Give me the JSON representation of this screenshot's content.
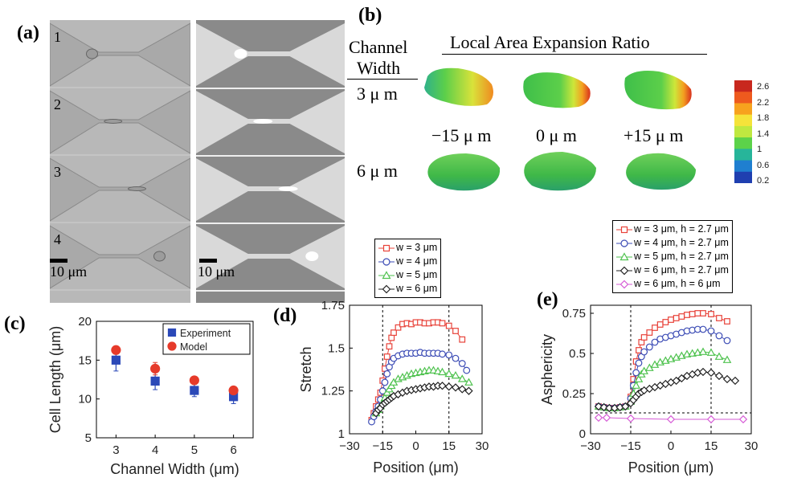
{
  "colors": {
    "red": "#e8433a",
    "blue": "#3b4bb5",
    "green": "#4fc24f",
    "black": "#222222",
    "magenta": "#d65bd6",
    "exp": "#2b49b8",
    "model": "#e63a2a"
  },
  "panel_a": {
    "label": "(a)",
    "rows": [
      "1",
      "2",
      "3",
      "4"
    ],
    "scale_left": "10 μm",
    "scale_right": "10 μm"
  },
  "panel_b": {
    "label": "(b)",
    "title": "Local Area Expansion Ratio",
    "row_header_1": "Channel",
    "row_header_2": "Width",
    "row_labels": [
      "3  μ m",
      "6  μ m"
    ],
    "positions": [
      "−15 μ m",
      "0  μ m",
      "+15  μ m"
    ],
    "colorbar_ticks": [
      "2.6",
      "2.2",
      "1.8",
      "1.4",
      "1",
      "0.6",
      "0.2"
    ],
    "colorbar_colors": [
      "#c8281e",
      "#ee5a1e",
      "#f7a21e",
      "#f5e33a",
      "#bfe840",
      "#5cd24a",
      "#27b59a",
      "#1f7fd0",
      "#1f3fb0"
    ]
  },
  "chart_data": [
    {
      "id": "c",
      "type": "scatter",
      "label": "(c)",
      "xlabel": "Channel Width (μm)",
      "ylabel": "Cell Length (μm)",
      "xlim": [
        2.5,
        6.5
      ],
      "ylim": [
        5,
        20
      ],
      "xticks": [
        3,
        4,
        5,
        6
      ],
      "yticks": [
        5,
        10,
        15,
        20
      ],
      "series": [
        {
          "name": "Experiment",
          "marker": "square",
          "color": "#2b49b8",
          "x": [
            3,
            4,
            5,
            6
          ],
          "y": [
            15,
            12.3,
            11.1,
            10.3
          ],
          "err": [
            1.4,
            1.1,
            0.8,
            0.9
          ]
        },
        {
          "name": "Model",
          "marker": "circle",
          "color": "#e63a2a",
          "x": [
            3,
            4,
            5,
            6
          ],
          "y": [
            16.3,
            13.9,
            12.4,
            11.1
          ],
          "err": [
            0.5,
            0.8,
            0,
            0
          ]
        }
      ]
    },
    {
      "id": "d",
      "type": "line",
      "label": "(d)",
      "xlabel": "Position (μm)",
      "ylabel": "Stretch",
      "xlim": [
        -30,
        30
      ],
      "ylim": [
        1,
        1.75
      ],
      "xticks": [
        -30,
        -15,
        0,
        15,
        30
      ],
      "yticks": [
        1,
        1.25,
        1.5,
        1.75
      ],
      "vlines": [
        -15,
        15
      ],
      "series": [
        {
          "name": "w = 3 μm",
          "marker": "square",
          "color": "#e8433a",
          "x": [
            -20,
            -19,
            -18,
            -17,
            -16,
            -15,
            -14,
            -13,
            -12,
            -11,
            -10,
            -8,
            -6,
            -4,
            -2,
            0,
            2,
            4,
            6,
            8,
            10,
            12,
            15,
            18,
            21
          ],
          "y": [
            1.08,
            1.12,
            1.16,
            1.2,
            1.24,
            1.31,
            1.38,
            1.45,
            1.51,
            1.56,
            1.59,
            1.62,
            1.64,
            1.645,
            1.64,
            1.65,
            1.65,
            1.645,
            1.645,
            1.65,
            1.65,
            1.645,
            1.63,
            1.6,
            1.55
          ]
        },
        {
          "name": "w = 4 μm",
          "marker": "circle",
          "color": "#3b4bb5",
          "x": [
            -20,
            -19,
            -18,
            -17,
            -16,
            -15,
            -14,
            -13,
            -12,
            -11,
            -10,
            -8,
            -6,
            -4,
            -2,
            0,
            2,
            4,
            6,
            8,
            10,
            12,
            15,
            18,
            21,
            23
          ],
          "y": [
            1.07,
            1.1,
            1.13,
            1.16,
            1.2,
            1.25,
            1.3,
            1.35,
            1.39,
            1.42,
            1.44,
            1.455,
            1.465,
            1.47,
            1.47,
            1.47,
            1.475,
            1.47,
            1.47,
            1.47,
            1.47,
            1.465,
            1.46,
            1.44,
            1.41,
            1.37
          ]
        },
        {
          "name": "w = 5 μm",
          "marker": "triangle",
          "color": "#4fc24f",
          "x": [
            -18,
            -17,
            -16,
            -15,
            -14,
            -13,
            -12,
            -11,
            -10,
            -8,
            -6,
            -4,
            -2,
            0,
            2,
            4,
            6,
            8,
            10,
            12,
            15,
            18,
            21,
            24
          ],
          "y": [
            1.12,
            1.14,
            1.16,
            1.18,
            1.21,
            1.24,
            1.26,
            1.28,
            1.3,
            1.32,
            1.33,
            1.34,
            1.35,
            1.355,
            1.36,
            1.365,
            1.37,
            1.37,
            1.365,
            1.36,
            1.35,
            1.34,
            1.32,
            1.3
          ]
        },
        {
          "name": "w = 6 μm",
          "marker": "diamond",
          "color": "#222222",
          "x": [
            -18,
            -17,
            -16,
            -15,
            -14,
            -13,
            -12,
            -11,
            -10,
            -8,
            -6,
            -4,
            -2,
            0,
            2,
            4,
            6,
            8,
            10,
            12,
            15,
            18,
            21,
            24
          ],
          "y": [
            1.12,
            1.14,
            1.15,
            1.17,
            1.18,
            1.19,
            1.2,
            1.21,
            1.22,
            1.23,
            1.24,
            1.25,
            1.255,
            1.26,
            1.265,
            1.27,
            1.275,
            1.275,
            1.28,
            1.28,
            1.275,
            1.27,
            1.26,
            1.25
          ]
        }
      ]
    },
    {
      "id": "e",
      "type": "line",
      "label": "(e)",
      "xlabel": "Position (μm)",
      "ylabel": "Asphericity",
      "xlim": [
        -30,
        30
      ],
      "ylim": [
        0,
        0.8
      ],
      "xticks": [
        -30,
        -15,
        0,
        15,
        30
      ],
      "yticks": [
        0,
        0.25,
        0.5,
        0.75
      ],
      "vlines": [
        -15,
        15
      ],
      "hline": 0.13,
      "series": [
        {
          "name": "w = 3 μm, h = 2.7 μm",
          "marker": "square",
          "color": "#e8433a",
          "x": [
            -27,
            -25,
            -23,
            -21,
            -19,
            -17,
            -15,
            -14,
            -13,
            -12,
            -11,
            -10,
            -8,
            -6,
            -4,
            -2,
            0,
            2,
            4,
            6,
            8,
            10,
            12,
            15,
            18,
            21
          ],
          "y": [
            0.17,
            0.165,
            0.16,
            0.16,
            0.165,
            0.17,
            0.23,
            0.34,
            0.45,
            0.52,
            0.57,
            0.6,
            0.63,
            0.66,
            0.68,
            0.695,
            0.71,
            0.72,
            0.73,
            0.74,
            0.745,
            0.75,
            0.75,
            0.745,
            0.72,
            0.7
          ]
        },
        {
          "name": "w = 4 μm, h = 2.7 μm",
          "marker": "circle",
          "color": "#3b4bb5",
          "x": [
            -27,
            -25,
            -23,
            -21,
            -19,
            -17,
            -15,
            -14,
            -13,
            -12,
            -11,
            -10,
            -8,
            -6,
            -4,
            -2,
            0,
            2,
            4,
            6,
            8,
            10,
            12,
            15,
            18,
            21
          ],
          "y": [
            0.17,
            0.165,
            0.16,
            0.16,
            0.165,
            0.17,
            0.22,
            0.3,
            0.38,
            0.44,
            0.48,
            0.51,
            0.54,
            0.57,
            0.59,
            0.6,
            0.61,
            0.62,
            0.63,
            0.64,
            0.645,
            0.65,
            0.65,
            0.64,
            0.61,
            0.58
          ]
        },
        {
          "name": "w = 5 μm, h = 2.7 μm",
          "marker": "triangle",
          "color": "#4fc24f",
          "x": [
            -27,
            -25,
            -23,
            -21,
            -19,
            -17,
            -15,
            -14,
            -13,
            -12,
            -11,
            -10,
            -8,
            -6,
            -4,
            -2,
            0,
            2,
            4,
            6,
            8,
            10,
            12,
            15,
            18,
            21
          ],
          "y": [
            0.17,
            0.165,
            0.16,
            0.16,
            0.165,
            0.17,
            0.2,
            0.25,
            0.3,
            0.34,
            0.37,
            0.39,
            0.41,
            0.43,
            0.445,
            0.455,
            0.465,
            0.475,
            0.485,
            0.495,
            0.5,
            0.505,
            0.51,
            0.505,
            0.48,
            0.46
          ]
        },
        {
          "name": "w = 6 μm, h = 2.7 μm",
          "marker": "diamond",
          "color": "#222222",
          "x": [
            -27,
            -25,
            -23,
            -21,
            -19,
            -17,
            -15,
            -14,
            -13,
            -12,
            -11,
            -10,
            -8,
            -6,
            -4,
            -2,
            0,
            2,
            4,
            6,
            8,
            10,
            12,
            15,
            18,
            21,
            24
          ],
          "y": [
            0.17,
            0.165,
            0.16,
            0.16,
            0.165,
            0.17,
            0.19,
            0.21,
            0.23,
            0.25,
            0.26,
            0.27,
            0.28,
            0.29,
            0.3,
            0.31,
            0.32,
            0.33,
            0.345,
            0.36,
            0.37,
            0.38,
            0.385,
            0.38,
            0.36,
            0.34,
            0.33
          ]
        },
        {
          "name": "w = 6 μm, h = 6 μm",
          "marker": "diamond",
          "color": "#d65bd6",
          "x": [
            -27,
            -24,
            -15,
            0,
            15,
            27
          ],
          "y": [
            0.1,
            0.1,
            0.095,
            0.09,
            0.09,
            0.09
          ]
        }
      ]
    }
  ]
}
